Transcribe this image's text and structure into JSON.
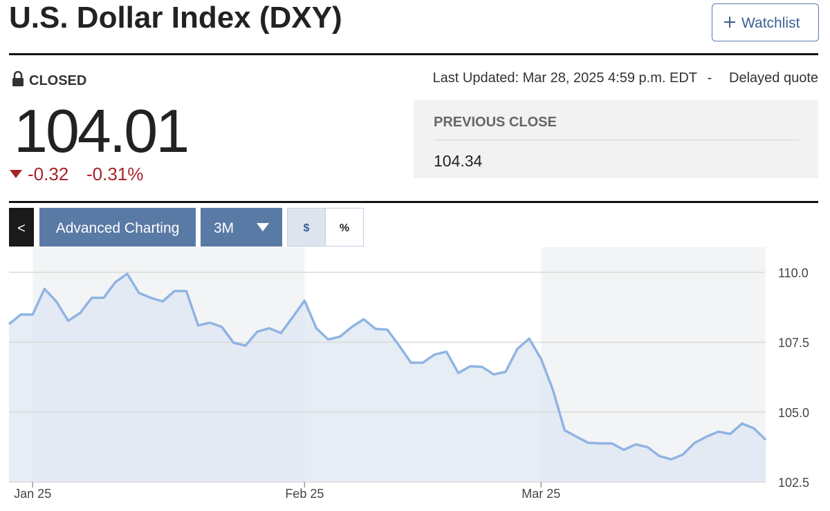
{
  "header": {
    "title": "U.S. Dollar Index (DXY)",
    "watchlist": "Watchlist"
  },
  "quote": {
    "status": "CLOSED",
    "price": "104.01",
    "change": "-0.32",
    "change_percent": "-0.31%",
    "last_updated": "Last Updated: Mar 28, 2025 4:59 p.m. EDT",
    "separator": "-",
    "delayed": "Delayed quote",
    "previous_close_label": "PREVIOUS CLOSE",
    "previous_close": "104.34"
  },
  "toolbar": {
    "back": "<",
    "advanced": "Advanced Charting",
    "range": "3M",
    "dollar": "$",
    "percent": "%"
  },
  "chart_data": {
    "type": "line",
    "color": "#8fb4e3",
    "categories": [
      null,
      null,
      "Jan 25",
      null,
      null,
      null,
      null,
      null,
      null,
      null,
      null,
      null,
      null,
      null,
      null,
      null,
      null,
      null,
      null,
      null,
      null,
      null,
      null,
      null,
      null,
      "Feb 25",
      null,
      null,
      null,
      null,
      null,
      null,
      null,
      null,
      null,
      null,
      null,
      null,
      null,
      null,
      null,
      null,
      null,
      null,
      null,
      "Mar 25",
      null,
      null,
      null,
      null,
      null,
      null,
      null,
      null,
      null,
      null,
      null,
      null,
      null,
      null,
      null,
      null,
      null,
      null,
      null
    ],
    "values": [
      108.15,
      108.49,
      108.49,
      109.41,
      108.96,
      108.27,
      108.54,
      109.09,
      109.09,
      109.65,
      109.95,
      109.26,
      109.09,
      108.96,
      109.33,
      109.33,
      108.1,
      108.2,
      108.05,
      107.48,
      107.38,
      107.88,
      108.0,
      107.83,
      108.4,
      108.99,
      108.0,
      107.6,
      107.7,
      108.05,
      108.32,
      107.98,
      107.95,
      107.38,
      106.77,
      106.77,
      107.06,
      107.16,
      106.4,
      106.64,
      106.62,
      106.35,
      106.44,
      107.26,
      107.63,
      106.91,
      105.8,
      104.35,
      104.12,
      103.9,
      103.88,
      103.88,
      103.65,
      103.85,
      103.75,
      103.43,
      103.31,
      103.48,
      103.9,
      104.12,
      104.3,
      104.22,
      104.59,
      104.42,
      104.01
    ],
    "ylim": [
      102.5,
      110.9
    ],
    "yticks": [
      {
        "value": 110,
        "label": "110.0"
      },
      107.5,
      {
        "value": 105,
        "label": "105.0"
      },
      102.5
    ],
    "grid": true
  }
}
